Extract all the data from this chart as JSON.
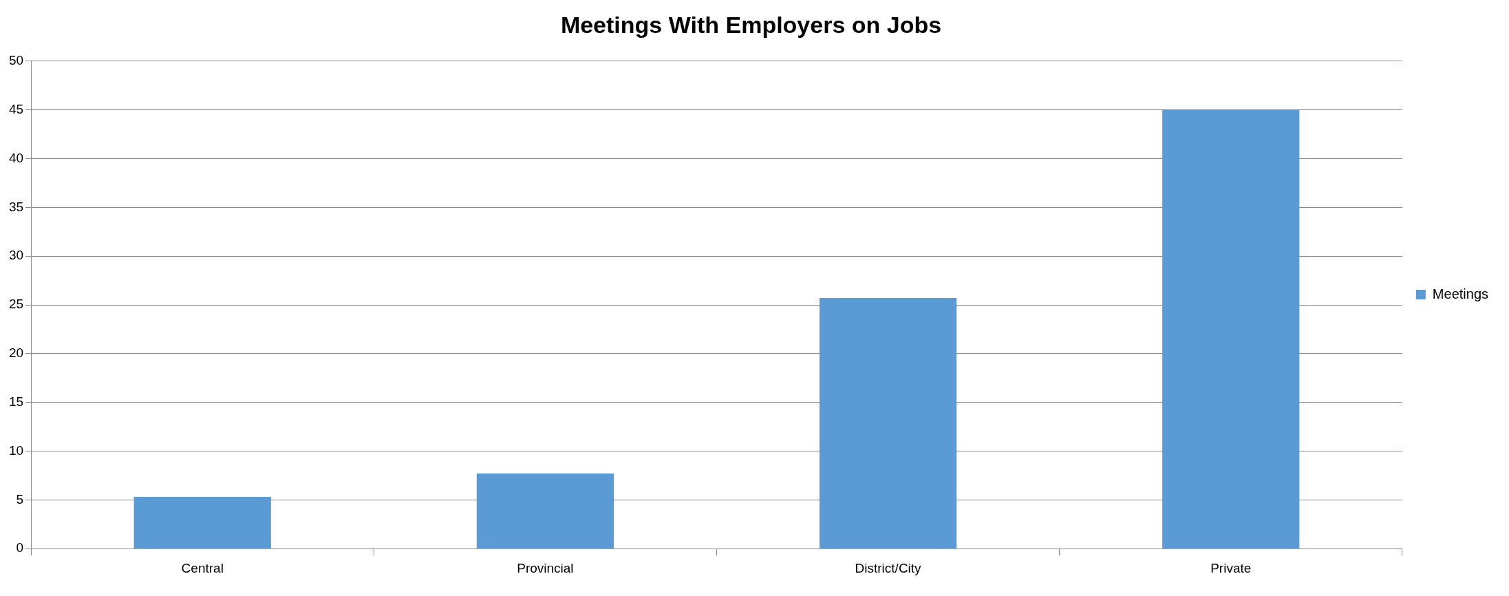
{
  "chart_data": {
    "type": "bar",
    "title": "Meetings With Employers on Jobs",
    "categories": [
      "Central",
      "Provincial",
      "District/City",
      "Private"
    ],
    "series": [
      {
        "name": "Meetings",
        "color": "#5b9bd5",
        "values": [
          5.3,
          7.7,
          25.7,
          45
        ]
      }
    ],
    "ylim": [
      0,
      50
    ],
    "yticks": [
      0,
      5,
      10,
      15,
      20,
      25,
      30,
      35,
      40,
      45,
      50
    ],
    "grid": "y",
    "legend": "right"
  }
}
